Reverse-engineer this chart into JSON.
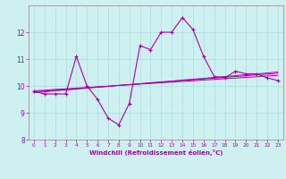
{
  "xlabel": "Windchill (Refroidissement éolien,°C)",
  "ylabel": "",
  "background_color": "#cff0f0",
  "grid_color": "#aadddd",
  "line_color": "#aa00aa",
  "xlim": [
    -0.5,
    23.5
  ],
  "ylim": [
    8.0,
    13.0
  ],
  "yticks": [
    8,
    9,
    10,
    11,
    12
  ],
  "xticks": [
    0,
    1,
    2,
    3,
    4,
    5,
    6,
    7,
    8,
    9,
    10,
    11,
    12,
    13,
    14,
    15,
    16,
    17,
    18,
    19,
    20,
    21,
    22,
    23
  ],
  "hours": [
    0,
    1,
    2,
    3,
    4,
    5,
    6,
    7,
    8,
    9,
    10,
    11,
    12,
    13,
    14,
    15,
    16,
    17,
    18,
    19,
    20,
    21,
    22,
    23
  ],
  "windchill": [
    9.8,
    9.7,
    9.7,
    9.7,
    11.1,
    10.0,
    9.5,
    8.8,
    8.55,
    9.35,
    11.5,
    11.35,
    12.0,
    12.0,
    12.55,
    12.1,
    11.1,
    10.35,
    10.3,
    10.55,
    10.45,
    10.45,
    10.3,
    10.2
  ],
  "line2": [
    9.82,
    9.84,
    9.87,
    9.89,
    9.92,
    9.94,
    9.97,
    9.99,
    10.02,
    10.04,
    10.07,
    10.09,
    10.12,
    10.14,
    10.17,
    10.19,
    10.22,
    10.24,
    10.27,
    10.29,
    10.32,
    10.34,
    10.37,
    10.39
  ],
  "line3": [
    9.78,
    9.81,
    9.84,
    9.87,
    9.9,
    9.93,
    9.96,
    9.99,
    10.02,
    10.05,
    10.08,
    10.11,
    10.14,
    10.17,
    10.2,
    10.23,
    10.26,
    10.29,
    10.32,
    10.35,
    10.38,
    10.41,
    10.44,
    10.47
  ],
  "line4": [
    9.75,
    9.78,
    9.82,
    9.85,
    9.88,
    9.92,
    9.95,
    9.98,
    10.02,
    10.05,
    10.08,
    10.12,
    10.15,
    10.18,
    10.22,
    10.25,
    10.28,
    10.32,
    10.35,
    10.38,
    10.42,
    10.45,
    10.48,
    10.52
  ]
}
